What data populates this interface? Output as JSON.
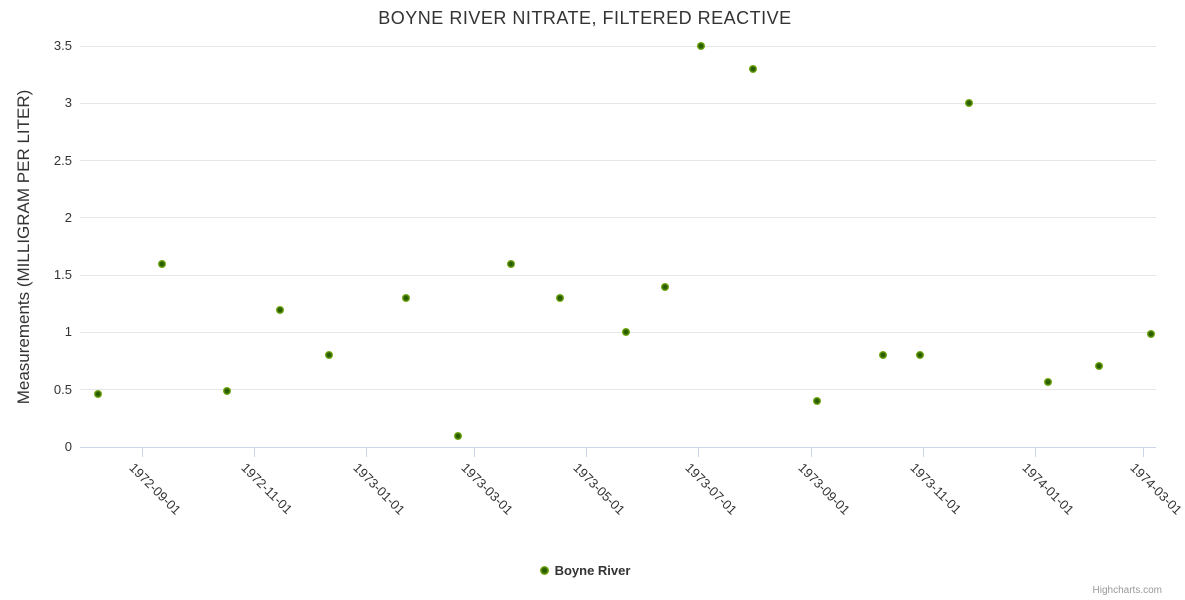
{
  "chart_data": {
    "type": "scatter",
    "title": "BOYNE RIVER NITRATE, FILTERED REACTIVE",
    "xlabel": "",
    "ylabel": "Measurements (MILLIGRAM PER LITER)",
    "ylim": [
      0,
      3.5
    ],
    "y_ticks": [
      {
        "value": 0,
        "label": "0"
      },
      {
        "value": 0.5,
        "label": "0.5"
      },
      {
        "value": 1,
        "label": "1"
      },
      {
        "value": 1.5,
        "label": "1.5"
      },
      {
        "value": 2,
        "label": "2"
      },
      {
        "value": 2.5,
        "label": "2.5"
      },
      {
        "value": 3,
        "label": "3"
      },
      {
        "value": 3.5,
        "label": "3.5"
      }
    ],
    "x_min": "1972-07-29",
    "x_max": "1974-03-08",
    "x_ticks": [
      "1972-09-01",
      "1972-11-01",
      "1973-01-01",
      "1973-03-01",
      "1973-05-01",
      "1973-07-01",
      "1973-09-01",
      "1973-11-01",
      "1974-01-01",
      "1974-03-01"
    ],
    "grid": "horizontal",
    "legend_position": "bottom-center",
    "series": [
      {
        "name": "Boyne River",
        "points": [
          {
            "date": "1972-08-08",
            "value": 0.46
          },
          {
            "date": "1972-09-12",
            "value": 1.6
          },
          {
            "date": "1972-10-17",
            "value": 0.49
          },
          {
            "date": "1972-11-15",
            "value": 1.2
          },
          {
            "date": "1972-12-12",
            "value": 0.8
          },
          {
            "date": "1973-01-23",
            "value": 1.3
          },
          {
            "date": "1973-02-20",
            "value": 0.1
          },
          {
            "date": "1973-03-21",
            "value": 1.6
          },
          {
            "date": "1973-04-17",
            "value": 1.3
          },
          {
            "date": "1973-05-23",
            "value": 1.0
          },
          {
            "date": "1973-06-13",
            "value": 1.4
          },
          {
            "date": "1973-07-03",
            "value": 3.5
          },
          {
            "date": "1973-07-31",
            "value": 3.3
          },
          {
            "date": "1973-09-04",
            "value": 0.4
          },
          {
            "date": "1973-10-10",
            "value": 0.8
          },
          {
            "date": "1973-10-30",
            "value": 0.8
          },
          {
            "date": "1973-11-26",
            "value": 3.0
          },
          {
            "date": "1974-01-08",
            "value": 0.57
          },
          {
            "date": "1974-02-05",
            "value": 0.71
          },
          {
            "date": "1974-03-05",
            "value": 0.99
          }
        ]
      }
    ]
  },
  "credits": {
    "label": "Highcharts.com"
  },
  "colors": {
    "marker_outer": "#8fc62c",
    "marker_mid": "#6ba00e",
    "marker_inner": "#2a5d00",
    "gridline": "#e7e7e7",
    "axis_line": "#ccd6eb",
    "text": "#333333",
    "credits_text": "#999999",
    "background": "#ffffff"
  }
}
